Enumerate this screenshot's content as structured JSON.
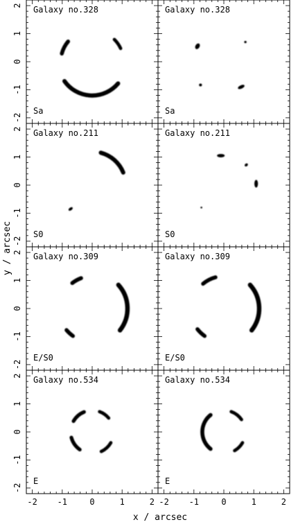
{
  "chart_data": {
    "type": "image-grid",
    "xlabel": "x / arcsec",
    "ylabel": "y / arcsec",
    "xlim": [
      -2.2,
      2.2
    ],
    "ylim": [
      -2.2,
      2.2
    ],
    "xticks": [
      "-2",
      "-1",
      "0",
      "1",
      "2"
    ],
    "yticks": [
      "-2",
      "-1",
      "0",
      "1",
      "2"
    ],
    "rows": [
      {
        "galaxy": "Galaxy no.328",
        "type": "Sa",
        "panels": [
          {
            "features": [
              {
                "kind": "arc",
                "r": 1.05,
                "a1": 140,
                "a2": 165,
                "w": 0.13
              },
              {
                "kind": "arc",
                "r": 1.05,
                "a1": 25,
                "a2": 45,
                "w": 0.11
              },
              {
                "kind": "arc",
                "r": 1.13,
                "a1": 215,
                "a2": 320,
                "w": 0.14
              }
            ]
          },
          {
            "features": [
              {
                "kind": "blob",
                "x": -0.88,
                "y": 0.55,
                "rx": 0.07,
                "ry": 0.11,
                "rot": 30
              },
              {
                "kind": "blob",
                "x": 0.72,
                "y": 0.7,
                "rx": 0.04,
                "ry": 0.04,
                "rot": 0
              },
              {
                "kind": "blob",
                "x": -0.78,
                "y": -0.83,
                "rx": 0.05,
                "ry": 0.05,
                "rot": 0
              },
              {
                "kind": "blob",
                "x": 0.58,
                "y": -0.9,
                "rx": 0.12,
                "ry": 0.06,
                "rot": -25
              }
            ]
          }
        ]
      },
      {
        "galaxy": "Galaxy no.211",
        "type": "S0",
        "panels": [
          {
            "features": [
              {
                "kind": "arc",
                "r": 1.12,
                "a1": 22,
                "a2": 75,
                "w": 0.14
              },
              {
                "kind": "blob",
                "x": -0.72,
                "y": -0.85,
                "rx": 0.08,
                "ry": 0.05,
                "rot": -35
              }
            ]
          },
          {
            "features": [
              {
                "kind": "blob",
                "x": -0.1,
                "y": 1.05,
                "rx": 0.13,
                "ry": 0.06,
                "rot": 0
              },
              {
                "kind": "blob",
                "x": 0.75,
                "y": 0.72,
                "rx": 0.06,
                "ry": 0.05,
                "rot": -40
              },
              {
                "kind": "blob",
                "x": 1.08,
                "y": 0.05,
                "rx": 0.06,
                "ry": 0.14,
                "rot": 0
              },
              {
                "kind": "blob",
                "x": -0.75,
                "y": -0.8,
                "rx": 0.03,
                "ry": 0.03,
                "rot": 0
              }
            ]
          }
        ]
      },
      {
        "galaxy": "Galaxy no.309",
        "type": "E/S0",
        "panels": [
          {
            "features": [
              {
                "kind": "arc",
                "r": 1.08,
                "a1": 110,
                "a2": 128,
                "w": 0.13
              },
              {
                "kind": "arc",
                "r": 1.18,
                "a1": -38,
                "a2": 42,
                "w": 0.15
              },
              {
                "kind": "arc",
                "r": 1.12,
                "a1": 220,
                "a2": 235,
                "w": 0.13
              }
            ]
          },
          {
            "features": [
              {
                "kind": "arc",
                "r": 1.08,
                "a1": 105,
                "a2": 130,
                "w": 0.13
              },
              {
                "kind": "arc",
                "r": 1.18,
                "a1": -38,
                "a2": 42,
                "w": 0.15
              },
              {
                "kind": "arc",
                "r": 1.12,
                "a1": 218,
                "a2": 235,
                "w": 0.13
              }
            ]
          }
        ]
      },
      {
        "galaxy": "Galaxy no.534",
        "type": "E",
        "panels": [
          {
            "features": [
              {
                "kind": "arc",
                "r": 0.72,
                "a1": 112,
                "a2": 150,
                "w": 0.12
              },
              {
                "kind": "arc",
                "r": 0.72,
                "a1": 40,
                "a2": 70,
                "w": 0.11
              },
              {
                "kind": "arc",
                "r": 0.72,
                "a1": 195,
                "a2": 235,
                "w": 0.12
              },
              {
                "kind": "arc",
                "r": 0.72,
                "a1": 295,
                "a2": 330,
                "w": 0.11
              }
            ]
          },
          {
            "features": [
              {
                "kind": "arc",
                "r": 0.72,
                "a1": 128,
                "a2": 232,
                "w": 0.13
              },
              {
                "kind": "arc",
                "r": 0.72,
                "a1": 35,
                "a2": 70,
                "w": 0.11
              },
              {
                "kind": "arc",
                "r": 0.72,
                "a1": 300,
                "a2": 330,
                "w": 0.11
              }
            ]
          }
        ]
      }
    ]
  }
}
